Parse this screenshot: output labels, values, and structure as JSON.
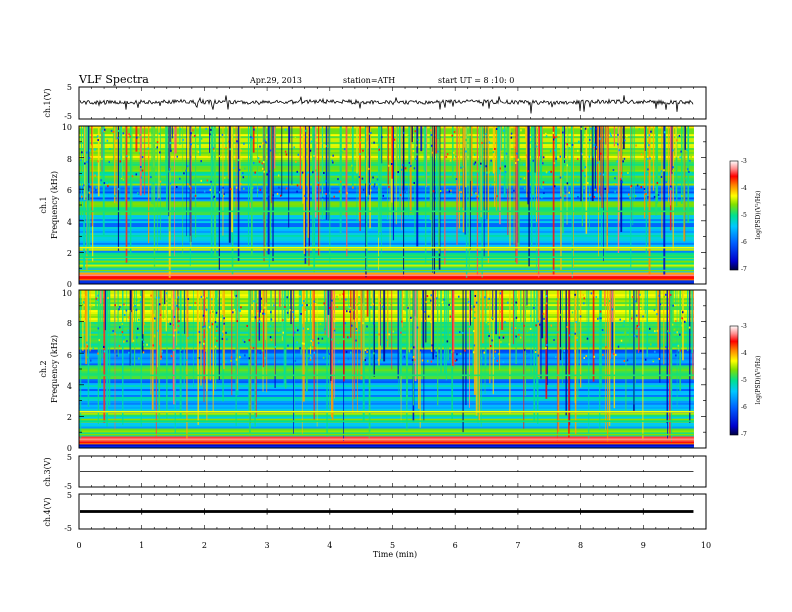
{
  "header": {
    "title": "VLF Spectra",
    "date": "Apr.29, 2013",
    "station": "station=ATH",
    "start": "start UT =  8 :10: 0"
  },
  "chart_data": [
    {
      "type": "line",
      "panel": "ch1-waveform",
      "ylabel": "ch.1(V)",
      "xlim": [
        0,
        10
      ],
      "ylim": [
        -5,
        5
      ],
      "yticks": [
        "5",
        "-5"
      ],
      "data_end_min": 9.8,
      "baseline": 0.3,
      "amplitude": 0.8
    },
    {
      "type": "heatmap",
      "panel": "ch1-spectrogram",
      "ylabel_channel": "ch.1",
      "ylabel": "Frequency  (kHz)",
      "xlim": [
        0,
        10
      ],
      "ylim": [
        0,
        10
      ],
      "yticks": [
        "0",
        "2",
        "4",
        "6",
        "8",
        "10"
      ],
      "data_end_min": 9.8,
      "colorbar": {
        "label": "log(PSD)(V²/Hz)",
        "ticks": [
          "-3",
          "-4",
          "-5",
          "-6",
          "-7"
        ],
        "range": [
          -7,
          -3
        ]
      }
    },
    {
      "type": "heatmap",
      "panel": "ch2-spectrogram",
      "ylabel_channel": "ch.2",
      "ylabel": "Frequency  (kHz)",
      "xlim": [
        0,
        10
      ],
      "ylim": [
        0,
        10
      ],
      "yticks": [
        "0",
        "2",
        "4",
        "6",
        "8",
        "10"
      ],
      "data_end_min": 9.8,
      "colorbar": {
        "label": "log(PSD)(V²/Hz)",
        "ticks": [
          "-3",
          "-4",
          "-5",
          "-6",
          "-7"
        ],
        "range": [
          -7,
          -3
        ]
      }
    },
    {
      "type": "line",
      "panel": "ch3-waveform",
      "ylabel": "ch.3(V)",
      "xlim": [
        0,
        10
      ],
      "ylim": [
        -5,
        5
      ],
      "yticks": [
        "5",
        "-5"
      ],
      "data_end_min": 9.8,
      "baseline": 0.0,
      "amplitude": 0.0
    },
    {
      "type": "line",
      "panel": "ch4-waveform",
      "ylabel": "ch.4(V)",
      "xlim": [
        0,
        10
      ],
      "ylim": [
        -5,
        5
      ],
      "yticks": [
        "5",
        "-5"
      ],
      "data_end_min": 9.8,
      "baseline": 0.0,
      "amplitude": 0.4,
      "xlabel": "Time  (min)",
      "xticks": [
        "0",
        "1",
        "2",
        "3",
        "4",
        "5",
        "6",
        "7",
        "8",
        "9",
        "10"
      ]
    }
  ]
}
